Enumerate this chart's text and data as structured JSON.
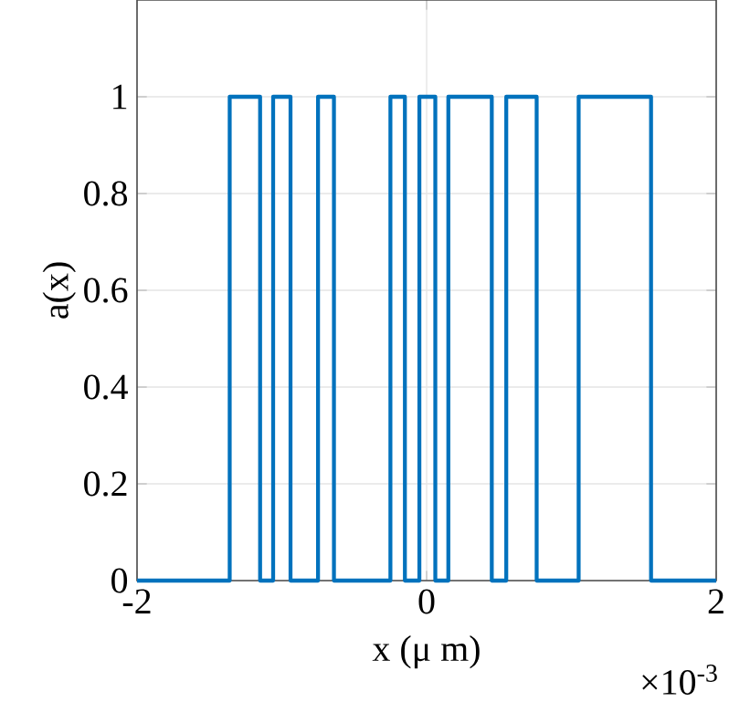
{
  "chart_data": {
    "type": "step",
    "xlabel": "x (μ m)",
    "ylabel": "a(x)",
    "annotations": [
      "×10$^{-3}$"
    ],
    "xlim": [
      -2,
      2
    ],
    "xticks": [
      -2,
      0,
      2
    ],
    "ylim": [
      0,
      1.2
    ],
    "yticks": [
      0,
      0.2,
      0.4,
      0.6,
      0.8,
      1
    ],
    "grid": true,
    "series": [
      {
        "color": "#0072bd",
        "x": [
          -2,
          -1.36,
          -1.15,
          -1.06,
          -0.94,
          -0.75,
          -0.64,
          -0.25,
          -0.15,
          -0.05,
          0.06,
          0.15,
          0.45,
          0.55,
          0.76,
          1.05,
          1.55,
          2
        ],
        "values": [
          0,
          1,
          0,
          1,
          0,
          1,
          0,
          1,
          0,
          1,
          0,
          1,
          0,
          1,
          0,
          1,
          0,
          0
        ]
      }
    ]
  }
}
